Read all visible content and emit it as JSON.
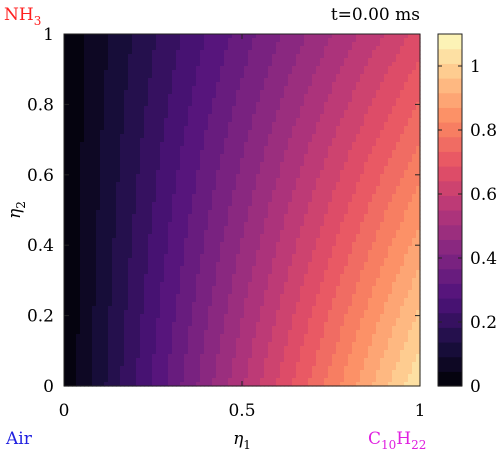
{
  "chart_data": {
    "type": "heatmap",
    "title": "t=0.00 ms",
    "corner_labels": {
      "top_left": {
        "base": "NH",
        "sub": "3",
        "color": "#ff2020"
      },
      "bottom_left": {
        "text": "Air",
        "color": "#2020e0"
      },
      "bottom_right": {
        "base": "C",
        "sub1": "10",
        "mid": "H",
        "sub2": "22",
        "color": "#e020e0"
      }
    },
    "xlabel": {
      "base": "η",
      "sub": "1"
    },
    "ylabel": {
      "base": "η",
      "sub": "2"
    },
    "xlim": [
      0,
      1
    ],
    "ylim": [
      0,
      1
    ],
    "x_ticks": [
      {
        "value": 0,
        "label": "0"
      },
      {
        "value": 0.5,
        "label": "0.5"
      },
      {
        "value": 1,
        "label": "1"
      }
    ],
    "y_ticks": [
      {
        "value": 0,
        "label": "0"
      },
      {
        "value": 0.2,
        "label": "0.2"
      },
      {
        "value": 0.4,
        "label": "0.4"
      },
      {
        "value": 0.6,
        "label": "0.6"
      },
      {
        "value": 0.8,
        "label": "0.8"
      },
      {
        "value": 1,
        "label": "1"
      }
    ],
    "colorbar": {
      "range": [
        0,
        1.1
      ],
      "levels": 24,
      "ticks": [
        {
          "value": 0,
          "label": "0"
        },
        {
          "value": 0.2,
          "label": "0.2"
        },
        {
          "value": 0.4,
          "label": "0.4"
        },
        {
          "value": 0.6,
          "label": "0.6"
        },
        {
          "value": 0.8,
          "label": "0.8"
        },
        {
          "value": 1,
          "label": "1"
        }
      ]
    },
    "field_corner_values": {
      "x0_y0": 0.0,
      "x0_y1": 0.0,
      "x1_y0": 1.05,
      "x1_y1": 0.66
    },
    "colormap": [
      "#000004",
      "#1c1044",
      "#4f127b",
      "#812581",
      "#b5367a",
      "#e55064",
      "#fb8761",
      "#fec287",
      "#fcfdbf"
    ]
  }
}
